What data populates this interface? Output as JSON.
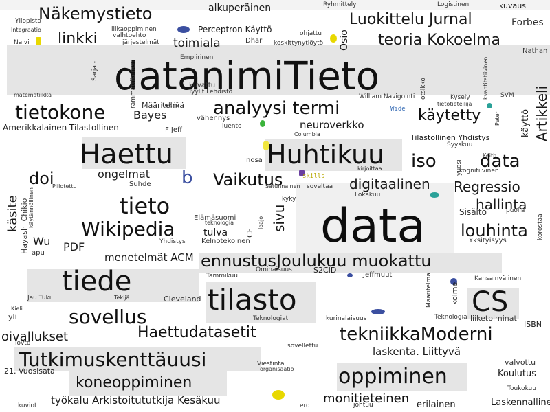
{
  "words": [
    {
      "text": "Näkemystieto",
      "color": "#151515"
    },
    {
      "text": "alkuperäinen",
      "color": "#1a1a1a"
    },
    {
      "text": "Ryhmittely",
      "color": "#333333"
    },
    {
      "text": "Logistinen",
      "color": "#333333"
    },
    {
      "text": "kuvaus",
      "color": "#1a1a1a"
    },
    {
      "text": "Yliopisto",
      "color": "#333333"
    },
    {
      "text": "Luokittelu Jurnal",
      "color": "#1a1a1a"
    },
    {
      "text": "Forbes",
      "color": "#333333"
    },
    {
      "text": "Integraatio",
      "color": "#333333"
    },
    {
      "text": "linkki",
      "color": "#111111"
    },
    {
      "text": "liikaoppiminen",
      "color": "#333333"
    },
    {
      "text": "Perceptron Käyttö",
      "color": "#1a1a1a"
    },
    {
      "text": "ohjattu",
      "color": "#333333"
    },
    {
      "text": "Osio",
      "color": "#1a1a1a"
    },
    {
      "text": "teoria Kokoelma",
      "color": "#1a1a1a"
    },
    {
      "text": "Naivi",
      "color": "#333333"
    },
    {
      "text": "valhtoehto",
      "color": "#333333"
    },
    {
      "text": "järjestelmät",
      "color": "#333333"
    },
    {
      "text": "toimiala",
      "color": "#1a1a1a"
    },
    {
      "text": "Dhar",
      "color": "#333333"
    },
    {
      "text": "koskittynytlöytö",
      "color": "#333333"
    },
    {
      "text": "Nathan",
      "color": "#333333"
    },
    {
      "text": "Empiirinen",
      "color": "#333333"
    },
    {
      "text": "kvantitatiivinen",
      "color": "#333333"
    },
    {
      "text": "datanimiTieto",
      "color": "#111111"
    },
    {
      "text": "Sarja -",
      "color": "#333333"
    },
    {
      "text": "rammattilainen",
      "color": "#333333"
    },
    {
      "text": "otsikko",
      "color": "#333333"
    },
    {
      "text": "kuvattu",
      "color": "#333333"
    },
    {
      "text": "Artikkeli",
      "color": "#1a1a1a"
    },
    {
      "text": "matematiikka",
      "color": "#333333"
    },
    {
      "text": "Kysely",
      "color": "#333333"
    },
    {
      "text": "SVM",
      "color": "#333333"
    },
    {
      "text": "Tyylit Lehdistö",
      "color": "#333333"
    },
    {
      "text": "William Navigointi",
      "color": "#333333"
    },
    {
      "text": "Määritelmä",
      "color": "#333333"
    },
    {
      "text": "tekijä",
      "color": "#333333"
    },
    {
      "text": "tietotieteilijä",
      "color": "#333333"
    },
    {
      "text": "analyysi termi",
      "color": "#111111"
    },
    {
      "text": "tietokone",
      "color": "#111111"
    },
    {
      "text": "Bayes",
      "color": "#1a1a1a"
    },
    {
      "text": "Wide",
      "color": "#3b6fb6"
    },
    {
      "text": "käytetty",
      "color": "#111111"
    },
    {
      "text": "käyttö",
      "color": "#1a1a1a"
    },
    {
      "text": "vähennys",
      "color": "#333333"
    },
    {
      "text": "Peter",
      "color": "#333333"
    },
    {
      "text": "luento",
      "color": "#333333"
    },
    {
      "text": "neuroverkko",
      "color": "#1a1a1a"
    },
    {
      "text": "Amerikkalainen Tilastollinen",
      "color": "#1a1a1a"
    },
    {
      "text": "F Jeff",
      "color": "#333333"
    },
    {
      "text": "Columbia",
      "color": "#333333"
    },
    {
      "text": "Tilastollinen Yhdistys",
      "color": "#1a1a1a"
    },
    {
      "text": "Haettu",
      "color": "#111111"
    },
    {
      "text": "Huhtikuu",
      "color": "#111111"
    },
    {
      "text": "Syyskuu",
      "color": "#333333"
    },
    {
      "text": "Keith",
      "color": "#333333"
    },
    {
      "text": "iso",
      "color": "#111111"
    },
    {
      "text": "data",
      "color": "#111111"
    },
    {
      "text": "nosa",
      "color": "#333333"
    },
    {
      "text": "kirjoittaa",
      "color": "#333333"
    },
    {
      "text": "yuosi",
      "color": "#333333"
    },
    {
      "text": "kognitiivinen",
      "color": "#333333"
    },
    {
      "text": "ongelmat",
      "color": "#1a1a1a"
    },
    {
      "text": "b",
      "color": "#3b4fa0"
    },
    {
      "text": "skills",
      "color": "#b7a800"
    },
    {
      "text": "doi",
      "color": "#111111"
    },
    {
      "text": "Suhde",
      "color": "#333333"
    },
    {
      "text": "Vaikutus",
      "color": "#111111"
    },
    {
      "text": "digitaalinen",
      "color": "#1a1a1a"
    },
    {
      "text": "Regressio",
      "color": "#1a1a1a"
    },
    {
      "text": "Piilotettu",
      "color": "#333333"
    },
    {
      "text": "Satunnainen",
      "color": "#333333"
    },
    {
      "text": "soveltaa",
      "color": "#333333"
    },
    {
      "text": "Lokakuu",
      "color": "#333333"
    },
    {
      "text": "käsite",
      "color": "#1a1a1a"
    },
    {
      "text": "Hayashi Chikio",
      "color": "#333333"
    },
    {
      "text": "käytännöllinen",
      "color": "#333333"
    },
    {
      "text": "tieto",
      "color": "#111111"
    },
    {
      "text": "kyky",
      "color": "#333333"
    },
    {
      "text": "hallinta",
      "color": "#1a1a1a"
    },
    {
      "text": "Sisältö",
      "color": "#333333"
    },
    {
      "text": "puolia",
      "color": "#333333"
    },
    {
      "text": "sivu",
      "color": "#1a1a1a"
    },
    {
      "text": "data",
      "color": "#0d0d0d"
    },
    {
      "text": "Elämäsuomi",
      "color": "#333333"
    },
    {
      "text": "teknologia",
      "color": "#333333"
    },
    {
      "text": "louhinta",
      "color": "#111111"
    },
    {
      "text": "korostaa",
      "color": "#333333"
    },
    {
      "text": "Wikipedia",
      "color": "#111111"
    },
    {
      "text": "tulva",
      "color": "#1a1a1a"
    },
    {
      "text": "loajo",
      "color": "#333333"
    },
    {
      "text": "CF",
      "color": "#333333"
    },
    {
      "text": "Yksityisyys",
      "color": "#333333"
    },
    {
      "text": "Wu",
      "color": "#1a1a1a"
    },
    {
      "text": "PDF",
      "color": "#1a1a1a"
    },
    {
      "text": "Yhdistys",
      "color": "#333333"
    },
    {
      "text": "Kelnotekoinen",
      "color": "#333333"
    },
    {
      "text": "apu",
      "color": "#333333"
    },
    {
      "text": "menetelmät ACM",
      "color": "#1a1a1a"
    },
    {
      "text": "ennustusJoulukuu muokattu",
      "color": "#111111"
    },
    {
      "text": "Ominaisuus",
      "color": "#333333"
    },
    {
      "text": "S2CID",
      "color": "#1a1a1a"
    },
    {
      "text": "Kansainvälinen",
      "color": "#333333"
    },
    {
      "text": "tiede",
      "color": "#111111"
    },
    {
      "text": "Tammikuu",
      "color": "#333333"
    },
    {
      "text": "Jeffmuut",
      "color": "#333333"
    },
    {
      "text": "Määritelmä",
      "color": "#333333"
    },
    {
      "text": "kolme",
      "color": "#1a1a1a"
    },
    {
      "text": "Jau Tuki",
      "color": "#333333"
    },
    {
      "text": "Tekijä",
      "color": "#333333"
    },
    {
      "text": "Cleveland",
      "color": "#333333"
    },
    {
      "text": "tilasto",
      "color": "#111111"
    },
    {
      "text": "CS",
      "color": "#111111"
    },
    {
      "text": "Kieli",
      "color": "#333333"
    },
    {
      "text": "sovellus",
      "color": "#111111"
    },
    {
      "text": "Teknologiat",
      "color": "#333333"
    },
    {
      "text": "kurinalaisuus",
      "color": "#333333"
    },
    {
      "text": "Teknologia",
      "color": "#333333"
    },
    {
      "text": "liiketoiminat",
      "color": "#333333"
    },
    {
      "text": "yli",
      "color": "#333333"
    },
    {
      "text": "ISBN",
      "color": "#1a1a1a"
    },
    {
      "text": "oivallukset",
      "color": "#1a1a1a"
    },
    {
      "text": "Haettudatasetit",
      "color": "#111111"
    },
    {
      "text": "tekniikkaModerni",
      "color": "#111111"
    },
    {
      "text": "lovto",
      "color": "#333333"
    },
    {
      "text": "sovellettu",
      "color": "#333333"
    },
    {
      "text": "laskenta. Liittyvä",
      "color": "#1a1a1a"
    },
    {
      "text": "Tutkimuskenttäuusi",
      "color": "#111111"
    },
    {
      "text": "valvottu",
      "color": "#333333"
    },
    {
      "text": "Viestintä",
      "color": "#333333"
    },
    {
      "text": "organisaatio",
      "color": "#333333"
    },
    {
      "text": "21. Vuosisata",
      "color": "#1a1a1a"
    },
    {
      "text": "oppiminen",
      "color": "#111111"
    },
    {
      "text": "Koulutus",
      "color": "#1a1a1a"
    },
    {
      "text": "koneoppiminen",
      "color": "#111111"
    },
    {
      "text": "Toukokuu",
      "color": "#333333"
    },
    {
      "text": "työkalu Arkistoitututkija Kesäkuu",
      "color": "#1a1a1a"
    },
    {
      "text": "monitieteinen",
      "color": "#111111"
    },
    {
      "text": "Laskennallinen",
      "color": "#1a1a1a"
    },
    {
      "text": "kuviot",
      "color": "#333333"
    },
    {
      "text": "ero",
      "color": "#333333"
    },
    {
      "text": "johtuu",
      "color": "#333333"
    },
    {
      "text": "erilainen",
      "color": "#1a1a1a"
    }
  ]
}
